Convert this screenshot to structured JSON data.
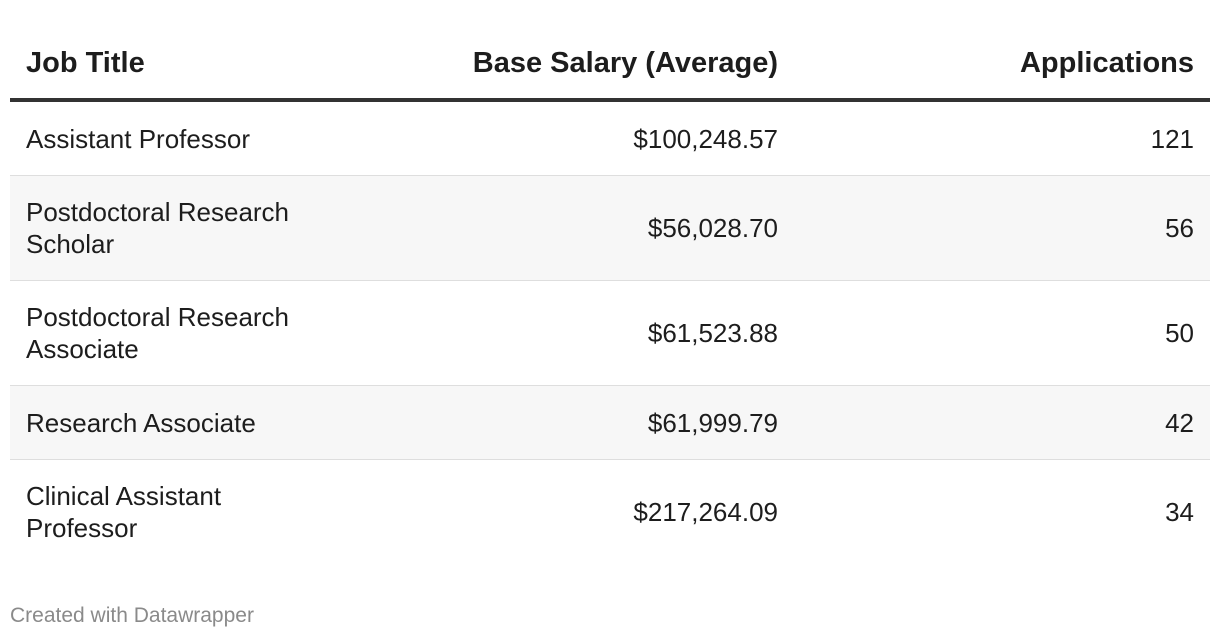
{
  "chart_data": {
    "type": "table",
    "columns": [
      "Job Title",
      "Base Salary (Average)",
      "Applications"
    ],
    "rows": [
      {
        "job_title": "Assistant Professor",
        "salary": "$100,248.57",
        "applications": "121"
      },
      {
        "job_title": "Postdoctoral Research Scholar",
        "salary": "$56,028.70",
        "applications": "56"
      },
      {
        "job_title": "Postdoctoral Research Associate",
        "salary": "$61,523.88",
        "applications": "50"
      },
      {
        "job_title": "Research Associate",
        "salary": "$61,999.79",
        "applications": "42"
      },
      {
        "job_title": "Clinical Assistant Professor",
        "salary": "$217,264.09",
        "applications": "34"
      }
    ]
  },
  "footer": {
    "credit": "Created with Datawrapper"
  },
  "colors": {
    "header_rule": "#333333",
    "row_alt_bg": "#f7f7f7",
    "row_divider": "#dedede",
    "footer_text": "#8a8a8a"
  }
}
